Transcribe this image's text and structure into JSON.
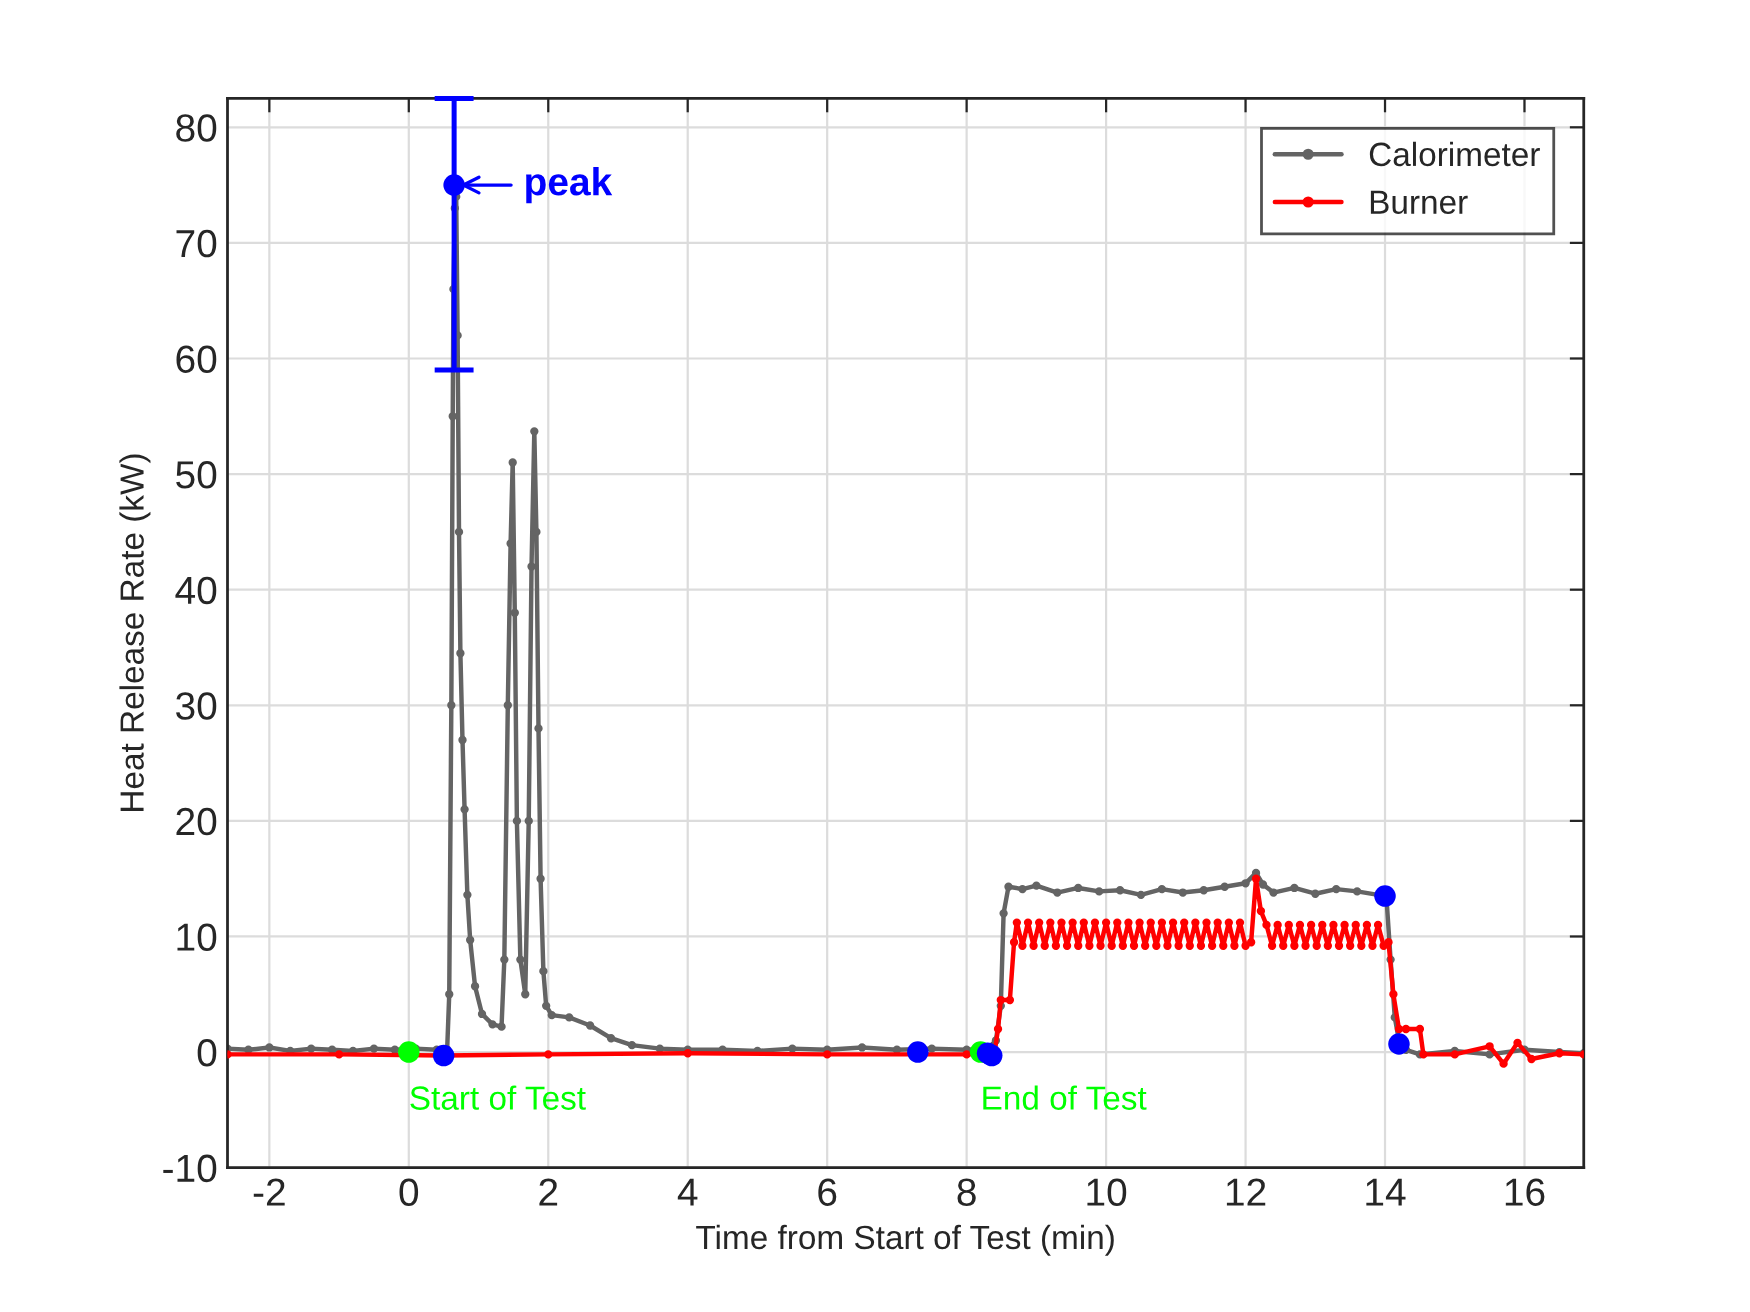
{
  "chart_data": {
    "type": "line",
    "xlabel": "Time from Start of Test (min)",
    "ylabel": "Heat Release Rate (kW)",
    "xlim": [
      -2.6,
      16.85
    ],
    "ylim": [
      -10,
      82.5
    ],
    "xticks": [
      -2,
      0,
      2,
      4,
      6,
      8,
      10,
      12,
      14,
      16
    ],
    "yticks": [
      -10,
      0,
      10,
      20,
      30,
      40,
      50,
      60,
      70,
      80
    ],
    "grid": true,
    "legend": "top right",
    "marker": "circle",
    "line_style": "solid",
    "annotations": [
      {
        "text": "peak",
        "x": 0.65,
        "y": 75
      },
      {
        "text": "Start of Test",
        "x": 0,
        "y": 0
      },
      {
        "text": "End of Test",
        "x": 8.2,
        "y": 0
      }
    ],
    "series": [
      {
        "name": "Calorimeter",
        "color": "#646464",
        "x": [
          -2.6,
          -2.3,
          -2.0,
          -1.7,
          -1.4,
          -1.1,
          -0.8,
          -0.5,
          -0.2,
          0.1,
          0.4,
          0.55,
          0.58,
          0.61,
          0.63,
          0.64,
          0.66,
          0.68,
          0.7,
          0.72,
          0.74,
          0.77,
          0.8,
          0.84,
          0.88,
          0.95,
          1.05,
          1.2,
          1.33,
          1.37,
          1.42,
          1.46,
          1.49,
          1.52,
          1.55,
          1.6,
          1.67,
          1.72,
          1.76,
          1.8,
          1.83,
          1.86,
          1.89,
          1.93,
          1.97,
          2.05,
          2.3,
          2.6,
          2.9,
          3.2,
          3.6,
          4.0,
          4.5,
          5.0,
          5.5,
          6.0,
          6.5,
          7.0,
          7.5,
          8.0,
          8.3,
          8.42,
          8.49,
          8.53,
          8.6,
          8.8,
          9.0,
          9.3,
          9.6,
          9.9,
          10.2,
          10.5,
          10.8,
          11.1,
          11.4,
          11.7,
          12.0,
          12.15,
          12.25,
          12.4,
          12.7,
          13.0,
          13.3,
          13.6,
          13.9,
          14.02,
          14.08,
          14.14,
          14.2,
          14.3,
          14.5,
          15.0,
          15.5,
          16.0,
          16.5,
          16.85
        ],
        "values": [
          0.3,
          0.2,
          0.4,
          0.1,
          0.3,
          0.2,
          0.1,
          0.3,
          0.2,
          0.3,
          0.2,
          0.2,
          5,
          30,
          55,
          66,
          73,
          74,
          62,
          45,
          34.5,
          27,
          21,
          13.6,
          9.7,
          5.7,
          3.3,
          2.4,
          2.2,
          8,
          30,
          44,
          51,
          38,
          20,
          8,
          5,
          20,
          42,
          53.7,
          45,
          28,
          15,
          7,
          4,
          3.2,
          3.0,
          2.3,
          1.2,
          0.6,
          0.3,
          0.2,
          0.2,
          0.1,
          0.3,
          0.2,
          0.4,
          0.2,
          0.3,
          0.2,
          0.3,
          1,
          4,
          12,
          14.3,
          14.1,
          14.4,
          13.8,
          14.2,
          13.9,
          14.0,
          13.6,
          14.1,
          13.8,
          14.0,
          14.3,
          14.6,
          15.5,
          14.5,
          13.8,
          14.2,
          13.7,
          14.1,
          13.9,
          13.6,
          13.4,
          8,
          3,
          1,
          0.2,
          -0.2,
          0.1,
          -0.2,
          0.2,
          0.0,
          -0.1
        ]
      },
      {
        "name": "Burner",
        "color": "#ff0000",
        "x": [
          -2.6,
          -1.0,
          0.5,
          2.0,
          4.0,
          6.0,
          8.0,
          8.4,
          8.45,
          8.49,
          8.62,
          8.68,
          8.72,
          8.8,
          8.88,
          8.96,
          9.04,
          9.12,
          9.2,
          9.28,
          9.36,
          9.44,
          9.52,
          9.6,
          9.68,
          9.76,
          9.84,
          9.92,
          10.0,
          10.08,
          10.16,
          10.24,
          10.32,
          10.4,
          10.48,
          10.56,
          10.64,
          10.72,
          10.8,
          10.88,
          10.96,
          11.04,
          11.12,
          11.2,
          11.28,
          11.36,
          11.44,
          11.52,
          11.6,
          11.68,
          11.76,
          11.84,
          11.92,
          12.0,
          12.08,
          12.15,
          12.22,
          12.3,
          12.38,
          12.46,
          12.54,
          12.62,
          12.7,
          12.78,
          12.86,
          12.94,
          13.02,
          13.1,
          13.18,
          13.26,
          13.34,
          13.42,
          13.5,
          13.58,
          13.66,
          13.74,
          13.82,
          13.9,
          13.98,
          14.05,
          14.12,
          14.2,
          14.3,
          14.5,
          14.55,
          15.0,
          15.5,
          15.7,
          15.9,
          16.1,
          16.5,
          16.85
        ],
        "values": [
          -0.2,
          -0.2,
          -0.3,
          -0.2,
          -0.1,
          -0.2,
          -0.2,
          -0.1,
          2,
          4.5,
          4.5,
          9.5,
          11.2,
          9.2,
          11.2,
          9.2,
          11.2,
          9.2,
          11.2,
          9.2,
          11.2,
          9.2,
          11.2,
          9.2,
          11.2,
          9.2,
          11.2,
          9.2,
          11.2,
          9.2,
          11.2,
          9.2,
          11.2,
          9.2,
          11.2,
          9.2,
          11.2,
          9.2,
          11.2,
          9.2,
          11.2,
          9.2,
          11.2,
          9.2,
          11.2,
          9.2,
          11.2,
          9.2,
          11.2,
          9.2,
          11.2,
          9.2,
          11.2,
          9.2,
          9.5,
          15.0,
          12.2,
          11.0,
          9.2,
          11.0,
          9.2,
          11.0,
          9.2,
          11.0,
          9.2,
          11.0,
          9.2,
          11.0,
          9.2,
          11.0,
          9.2,
          11.0,
          9.2,
          11.0,
          9.2,
          11.0,
          9.2,
          11.0,
          9.2,
          9.5,
          5,
          2,
          2,
          2,
          -0.2,
          -0.2,
          0.5,
          -1.0,
          0.8,
          -0.6,
          -0.1,
          -0.2
        ]
      },
      {
        "type": "scatter",
        "color": "#00ff00",
        "x": [
          0,
          8.2
        ],
        "values": [
          0,
          0
        ]
      },
      {
        "type": "scatter",
        "color": "#0000ff",
        "x": [
          0.5,
          0.65,
          7.3,
          8.3,
          8.36,
          14.0,
          14.2
        ],
        "values": [
          -0.3,
          75,
          0,
          -0.1,
          -0.3,
          13.5,
          0.7
        ],
        "errors": [
          null,
          [
            59,
            82.5
          ],
          null,
          null,
          null,
          null,
          null
        ]
      }
    ]
  }
}
